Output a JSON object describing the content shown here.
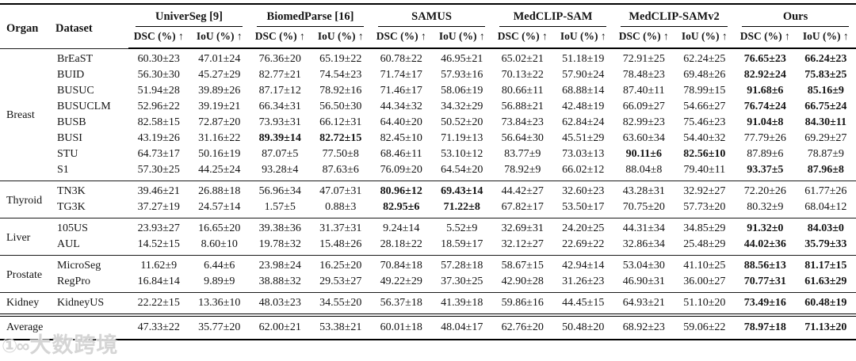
{
  "page": {
    "background": "#ffffff",
    "text_color": "#141414",
    "rule_color": "#000000"
  },
  "watermark": {
    "logo": "①∞",
    "text": "大数跨境"
  },
  "table": {
    "organ_header": "Organ",
    "dataset_header": "Dataset",
    "methods": [
      "UniverSeg [9]",
      "BiomedParse [16]",
      "SAMUS",
      "MedCLIP-SAM",
      "MedCLIP-SAMv2",
      "Ours"
    ],
    "metric_headers": [
      "DSC (%) ↑",
      "IoU (%) ↑"
    ],
    "value_columns_order": [
      "UniverSeg DSC",
      "UniverSeg IoU",
      "BiomedParse DSC",
      "BiomedParse IoU",
      "SAMUS DSC",
      "SAMUS IoU",
      "MedCLIP-SAM DSC",
      "MedCLIP-SAM IoU",
      "MedCLIP-SAMv2 DSC",
      "MedCLIP-SAMv2 IoU",
      "Ours DSC",
      "Ours IoU"
    ],
    "groups": [
      {
        "organ": "Breast",
        "rows": [
          {
            "dataset": "BrEaST",
            "values": [
              "60.30±23",
              "47.01±24",
              "76.36±20",
              "65.19±22",
              "60.78±22",
              "46.95±21",
              "65.02±21",
              "51.18±19",
              "72.91±25",
              "62.24±25",
              "76.65±23",
              "66.24±23"
            ],
            "bold": [
              10,
              11
            ]
          },
          {
            "dataset": "BUID",
            "values": [
              "56.30±30",
              "45.27±29",
              "82.77±21",
              "74.54±23",
              "71.74±17",
              "57.93±16",
              "70.13±22",
              "57.90±24",
              "78.48±23",
              "69.48±26",
              "82.92±24",
              "75.83±25"
            ],
            "bold": [
              10,
              11
            ]
          },
          {
            "dataset": "BUSUC",
            "values": [
              "51.94±28",
              "39.89±26",
              "87.17±12",
              "78.92±16",
              "71.46±17",
              "58.06±19",
              "80.66±11",
              "68.88±14",
              "87.40±11",
              "78.99±15",
              "91.68±6",
              "85.16±9"
            ],
            "bold": [
              10,
              11
            ]
          },
          {
            "dataset": "BUSUCLM",
            "values": [
              "52.96±22",
              "39.19±21",
              "66.34±31",
              "56.50±30",
              "44.34±32",
              "34.32±29",
              "56.88±21",
              "42.48±19",
              "66.09±27",
              "54.66±27",
              "76.74±24",
              "66.75±24"
            ],
            "bold": [
              10,
              11
            ]
          },
          {
            "dataset": "BUSB",
            "values": [
              "82.58±15",
              "72.87±20",
              "73.93±31",
              "66.12±31",
              "64.40±20",
              "50.52±20",
              "73.84±23",
              "62.84±24",
              "82.99±23",
              "75.46±23",
              "91.04±8",
              "84.30±11"
            ],
            "bold": [
              10,
              11
            ]
          },
          {
            "dataset": "BUSI",
            "values": [
              "43.19±26",
              "31.16±22",
              "89.39±14",
              "82.72±15",
              "82.45±10",
              "71.19±13",
              "56.64±30",
              "45.51±29",
              "63.60±34",
              "54.40±32",
              "77.79±26",
              "69.29±27"
            ],
            "bold": [
              2,
              3
            ]
          },
          {
            "dataset": "STU",
            "values": [
              "64.73±17",
              "50.16±19",
              "87.07±5",
              "77.50±8",
              "68.46±11",
              "53.10±12",
              "83.77±9",
              "73.03±13",
              "90.11±6",
              "82.56±10",
              "87.89±6",
              "78.87±9"
            ],
            "bold": [
              8,
              9
            ]
          },
          {
            "dataset": "S1",
            "values": [
              "57.30±25",
              "44.25±24",
              "93.28±4",
              "87.63±6",
              "76.09±20",
              "64.54±20",
              "78.92±9",
              "66.02±12",
              "88.04±8",
              "79.40±11",
              "93.37±5",
              "87.96±8"
            ],
            "bold": [
              10,
              11
            ]
          }
        ]
      },
      {
        "organ": "Thyroid",
        "rows": [
          {
            "dataset": "TN3K",
            "values": [
              "39.46±21",
              "26.88±18",
              "56.96±34",
              "47.07±31",
              "80.96±12",
              "69.43±14",
              "44.42±27",
              "32.60±23",
              "43.28±31",
              "32.92±27",
              "72.20±26",
              "61.77±26"
            ],
            "bold": [
              4,
              5
            ]
          },
          {
            "dataset": "TG3K",
            "values": [
              "37.27±19",
              "24.57±14",
              "1.57±5",
              "0.88±3",
              "82.95±6",
              "71.22±8",
              "67.82±17",
              "53.50±17",
              "70.75±20",
              "57.73±20",
              "80.32±9",
              "68.04±12"
            ],
            "bold": [
              4,
              5
            ]
          }
        ]
      },
      {
        "organ": "Liver",
        "rows": [
          {
            "dataset": "105US",
            "values": [
              "23.93±27",
              "16.65±20",
              "39.38±36",
              "31.37±31",
              "9.24±14",
              "5.52±9",
              "32.69±31",
              "24.20±25",
              "44.31±34",
              "34.85±29",
              "91.32±0",
              "84.03±0"
            ],
            "bold": [
              10,
              11
            ]
          },
          {
            "dataset": "AUL",
            "values": [
              "14.52±15",
              "8.60±10",
              "19.78±32",
              "15.48±26",
              "28.18±22",
              "18.59±17",
              "32.12±27",
              "22.69±22",
              "32.86±34",
              "25.48±29",
              "44.02±36",
              "35.79±33"
            ],
            "bold": [
              10,
              11
            ]
          }
        ]
      },
      {
        "organ": "Prostate",
        "rows": [
          {
            "dataset": "MicroSeg",
            "values": [
              "11.62±9",
              "6.44±6",
              "23.98±24",
              "16.25±20",
              "70.84±18",
              "57.28±18",
              "58.67±15",
              "42.94±14",
              "53.04±30",
              "41.10±25",
              "88.56±13",
              "81.17±15"
            ],
            "bold": [
              10,
              11
            ]
          },
          {
            "dataset": "RegPro",
            "values": [
              "16.84±14",
              "9.89±9",
              "38.88±32",
              "29.53±27",
              "49.22±29",
              "37.30±25",
              "42.90±28",
              "31.26±23",
              "46.90±31",
              "36.00±27",
              "70.77±31",
              "61.63±29"
            ],
            "bold": [
              10,
              11
            ]
          }
        ]
      },
      {
        "organ": "Kidney",
        "rows": [
          {
            "dataset": "KidneyUS",
            "values": [
              "22.22±15",
              "13.36±10",
              "48.03±23",
              "34.55±20",
              "56.37±18",
              "41.39±18",
              "59.86±16",
              "44.45±15",
              "64.93±21",
              "51.10±20",
              "73.49±16",
              "60.48±19"
            ],
            "bold": [
              10,
              11
            ]
          }
        ]
      }
    ],
    "average_row": {
      "label": "Average",
      "values": [
        "47.33±22",
        "35.77±20",
        "62.00±21",
        "53.38±21",
        "60.01±18",
        "48.04±17",
        "62.76±20",
        "50.48±20",
        "68.92±23",
        "59.06±22",
        "78.97±18",
        "71.13±20"
      ],
      "bold": [
        10,
        11
      ]
    }
  }
}
